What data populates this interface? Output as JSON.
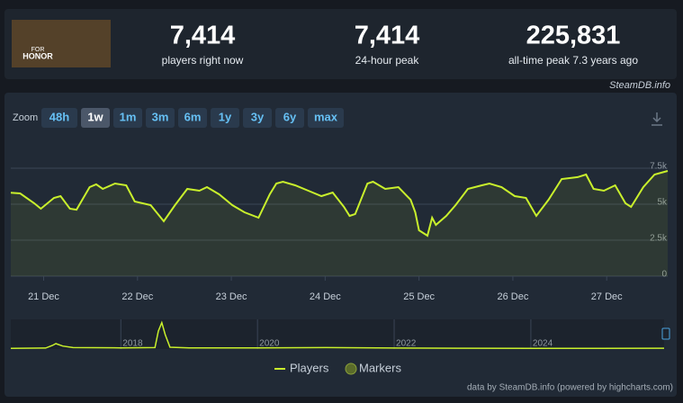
{
  "header": {
    "logo_text": [
      "FOR",
      "HONOR"
    ],
    "stats": [
      {
        "value": "7,414",
        "label": "players right now"
      },
      {
        "value": "7,414",
        "label": "24-hour peak"
      },
      {
        "value": "225,831",
        "label": "all-time peak 7.3 years ago"
      }
    ],
    "source": "SteamDB.info"
  },
  "zoom": {
    "label": "Zoom",
    "buttons": [
      "48h",
      "1w",
      "1m",
      "3m",
      "6m",
      "1y",
      "3y",
      "6y",
      "max"
    ],
    "active": 1
  },
  "chart_data": [
    {
      "type": "line",
      "x": [
        20.65,
        20.75,
        20.9,
        20.97,
        21.11,
        21.18,
        21.28,
        21.35,
        21.49,
        21.56,
        21.63,
        21.76,
        21.88,
        21.97,
        22.14,
        22.28,
        22.4,
        22.53,
        22.66,
        22.74,
        22.87,
        23.01,
        23.14,
        23.29,
        23.41,
        23.48,
        23.55,
        23.68,
        23.82,
        23.96,
        24.08,
        24.2,
        24.26,
        24.32,
        24.45,
        24.51,
        24.64,
        24.78,
        24.91,
        24.96,
        25.0,
        25.09,
        25.14,
        25.18,
        25.29,
        25.39,
        25.52,
        25.67,
        25.75,
        25.88,
        26.02,
        26.14,
        26.25,
        26.38,
        26.52,
        26.69,
        26.78,
        26.86,
        26.97,
        27.09,
        27.2,
        27.26,
        27.39,
        27.51,
        27.65
      ],
      "series": [
        {
          "name": "Players",
          "color": "#c9f02c",
          "values": [
            5800,
            5750,
            5060,
            4690,
            5440,
            5560,
            4690,
            4620,
            6190,
            6380,
            6060,
            6440,
            6310,
            5190,
            4940,
            3810,
            4940,
            6060,
            5940,
            6190,
            5690,
            4940,
            4440,
            4060,
            5690,
            6440,
            6560,
            6310,
            5940,
            5560,
            5810,
            4810,
            4190,
            4310,
            6440,
            6560,
            6060,
            6190,
            5310,
            4440,
            3190,
            2810,
            4060,
            3560,
            4190,
            4940,
            6060,
            6310,
            6440,
            6190,
            5560,
            5440,
            4190,
            5310,
            6750,
            6880,
            7060,
            6060,
            5940,
            6310,
            5060,
            4810,
            6190,
            7060,
            7310
          ]
        }
      ],
      "xlim": [
        20.65,
        27.65
      ],
      "xticks": [
        {
          "value": 21,
          "label": "21 Dec"
        },
        {
          "value": 22,
          "label": "22 Dec"
        },
        {
          "value": 23,
          "label": "23 Dec"
        },
        {
          "value": 24,
          "label": "24 Dec"
        },
        {
          "value": 25,
          "label": "25 Dec"
        },
        {
          "value": 26,
          "label": "26 Dec"
        },
        {
          "value": 27,
          "label": "27 Dec"
        }
      ],
      "ylim": [
        0,
        8000
      ],
      "yticks": [
        0,
        {
          "value": 2500,
          "label": "2.5k"
        },
        {
          "value": 5000,
          "label": "5k"
        },
        {
          "value": 7500,
          "label": "7.5k"
        }
      ],
      "grid": true,
      "markers_label": "Markers",
      "credit": "data by SteamDB.info (powered by highcharts.com)"
    },
    {
      "type": "line",
      "x": [
        2016.39,
        2016.9,
        2017.0,
        2017.05,
        2017.15,
        2017.3,
        2018.0,
        2018.5,
        2018.55,
        2018.6,
        2018.65,
        2018.72,
        2019.0,
        2020.0,
        2021.0,
        2022.0,
        2023.0,
        2024.0,
        2025.0,
        2025.95
      ],
      "values": [
        5000,
        8000,
        30000,
        45000,
        25000,
        12000,
        10000,
        12000,
        150000,
        220000,
        120000,
        15000,
        10000,
        9000,
        12000,
        8000,
        7000,
        6000,
        5000,
        7000
      ],
      "color": "#c9f02c",
      "xlim": [
        2016.39,
        2025.95
      ],
      "xticks": [
        2018,
        2020,
        2022,
        2024
      ],
      "ylim": [
        0,
        240000
      ]
    }
  ]
}
